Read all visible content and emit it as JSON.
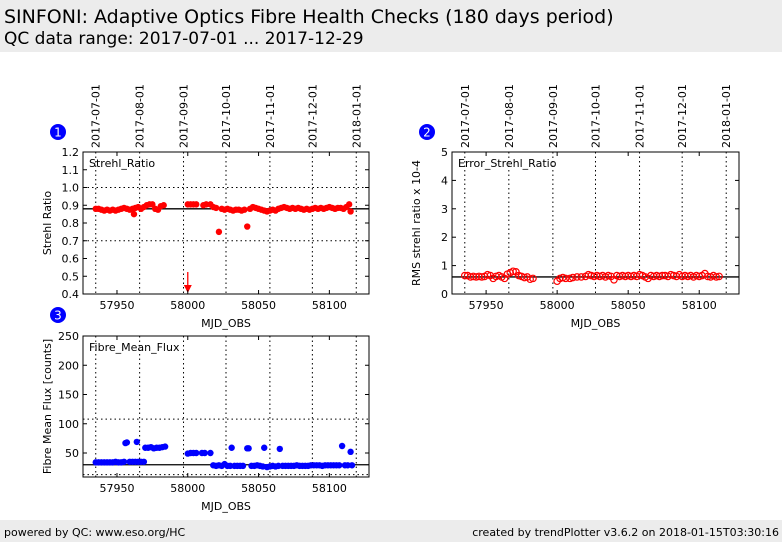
{
  "header": {
    "title": "SINFONI: Adaptive Optics Fibre Health Checks (180 days period)",
    "subtitle": "QC data range: 2017-07-01 ... 2017-12-29"
  },
  "footer": {
    "left": "powered by QC: www.eso.org/HC",
    "right": "created by trendPlotter v3.6.2 on 2018-01-15T03:30:16"
  },
  "colors": {
    "strehl": "#ff0000",
    "flux": "#0000ff",
    "badge": "#0000ff"
  },
  "chart_data": [
    {
      "type": "scatter",
      "badge": "1",
      "label": "Strehl_Ratio",
      "xlabel": "MJD_OBS",
      "ylabel": "Strehl Ratio",
      "xlim": [
        57926,
        58128
      ],
      "ylim": [
        0.4,
        1.2
      ],
      "yticks": [
        "0.4",
        "0.5",
        "0.6",
        "0.7",
        "0.8",
        "0.9",
        "1.0",
        "1.1",
        "1.2"
      ],
      "xticks": [
        "57950",
        "58000",
        "58050",
        "58100"
      ],
      "date_ticks": [
        "2017-07-01",
        "2017-08-01",
        "2017-09-01",
        "2017-10-01",
        "2017-11-01",
        "2017-12-01",
        "2018-01-01"
      ],
      "date_mjd": [
        57935,
        57966,
        57997,
        58027,
        58058,
        58088,
        58119
      ],
      "reference": 0.88,
      "thresholds": [
        1.0,
        0.7
      ],
      "marker": "filled",
      "off_scale_low_mjd": [
        58000
      ],
      "points": [
        [
          57935,
          0.88
        ],
        [
          57937,
          0.88
        ],
        [
          57939,
          0.875
        ],
        [
          57941,
          0.87
        ],
        [
          57943,
          0.875
        ],
        [
          57945,
          0.87
        ],
        [
          57947,
          0.875
        ],
        [
          57949,
          0.87
        ],
        [
          57951,
          0.875
        ],
        [
          57953,
          0.88
        ],
        [
          57955,
          0.885
        ],
        [
          57957,
          0.88
        ],
        [
          57959,
          0.875
        ],
        [
          57961,
          0.88
        ],
        [
          57962,
          0.85
        ],
        [
          57963,
          0.885
        ],
        [
          57965,
          0.89
        ],
        [
          57967,
          0.88
        ],
        [
          57969,
          0.89
        ],
        [
          57971,
          0.9
        ],
        [
          57973,
          0.905
        ],
        [
          57975,
          0.905
        ],
        [
          57977,
          0.88
        ],
        [
          57979,
          0.875
        ],
        [
          57981,
          0.895
        ],
        [
          57983,
          0.9
        ],
        [
          58000,
          0.905
        ],
        [
          58002,
          0.905
        ],
        [
          58004,
          0.905
        ],
        [
          58006,
          0.905
        ],
        [
          58011,
          0.9
        ],
        [
          58013,
          0.905
        ],
        [
          58016,
          0.905
        ],
        [
          58018,
          0.89
        ],
        [
          58020,
          0.885
        ],
        [
          58022,
          0.75
        ],
        [
          58024,
          0.88
        ],
        [
          58026,
          0.875
        ],
        [
          58028,
          0.88
        ],
        [
          58030,
          0.875
        ],
        [
          58032,
          0.87
        ],
        [
          58034,
          0.875
        ],
        [
          58036,
          0.875
        ],
        [
          58038,
          0.87
        ],
        [
          58040,
          0.875
        ],
        [
          58042,
          0.78
        ],
        [
          58044,
          0.88
        ],
        [
          58046,
          0.89
        ],
        [
          58048,
          0.885
        ],
        [
          58050,
          0.88
        ],
        [
          58052,
          0.875
        ],
        [
          58054,
          0.87
        ],
        [
          58056,
          0.865
        ],
        [
          58058,
          0.87
        ],
        [
          58060,
          0.875
        ],
        [
          58062,
          0.87
        ],
        [
          58064,
          0.88
        ],
        [
          58066,
          0.885
        ],
        [
          58068,
          0.89
        ],
        [
          58070,
          0.885
        ],
        [
          58072,
          0.88
        ],
        [
          58074,
          0.885
        ],
        [
          58076,
          0.88
        ],
        [
          58078,
          0.885
        ],
        [
          58080,
          0.88
        ],
        [
          58082,
          0.875
        ],
        [
          58084,
          0.88
        ],
        [
          58086,
          0.875
        ],
        [
          58088,
          0.88
        ],
        [
          58090,
          0.885
        ],
        [
          58092,
          0.88
        ],
        [
          58094,
          0.885
        ],
        [
          58096,
          0.88
        ],
        [
          58098,
          0.885
        ],
        [
          58100,
          0.89
        ],
        [
          58102,
          0.885
        ],
        [
          58104,
          0.88
        ],
        [
          58106,
          0.885
        ],
        [
          58108,
          0.885
        ],
        [
          58110,
          0.88
        ],
        [
          58112,
          0.89
        ],
        [
          58114,
          0.905
        ],
        [
          58115,
          0.865
        ]
      ]
    },
    {
      "type": "scatter",
      "badge": "2",
      "label": "Error_Strehl_Ratio",
      "xlabel": "MJD_OBS",
      "ylabel": "RMS strehl ratio x 10-4",
      "xlim": [
        57926,
        58128
      ],
      "ylim": [
        0,
        5
      ],
      "yticks": [
        "0",
        "1",
        "2",
        "3",
        "4",
        "5"
      ],
      "xticks": [
        "57950",
        "58000",
        "58050",
        "58100"
      ],
      "date_ticks": [
        "2017-07-01",
        "2017-08-01",
        "2017-09-01",
        "2017-10-01",
        "2017-11-01",
        "2017-12-01",
        "2018-01-01"
      ],
      "date_mjd": [
        57935,
        57966,
        57997,
        58027,
        58058,
        58088,
        58119
      ],
      "reference": 0.6,
      "thresholds": [],
      "marker": "open",
      "points": [
        [
          57935,
          0.65
        ],
        [
          57937,
          0.65
        ],
        [
          57939,
          0.6
        ],
        [
          57941,
          0.62
        ],
        [
          57943,
          0.6
        ],
        [
          57945,
          0.62
        ],
        [
          57947,
          0.6
        ],
        [
          57949,
          0.62
        ],
        [
          57951,
          0.68
        ],
        [
          57953,
          0.65
        ],
        [
          57955,
          0.55
        ],
        [
          57957,
          0.62
        ],
        [
          57959,
          0.65
        ],
        [
          57961,
          0.6
        ],
        [
          57963,
          0.55
        ],
        [
          57965,
          0.7
        ],
        [
          57967,
          0.75
        ],
        [
          57969,
          0.8
        ],
        [
          57971,
          0.78
        ],
        [
          57973,
          0.65
        ],
        [
          57975,
          0.62
        ],
        [
          57977,
          0.58
        ],
        [
          57979,
          0.6
        ],
        [
          57981,
          0.52
        ],
        [
          57983,
          0.55
        ],
        [
          58000,
          0.45
        ],
        [
          58002,
          0.55
        ],
        [
          58004,
          0.58
        ],
        [
          58006,
          0.55
        ],
        [
          58009,
          0.55
        ],
        [
          58011,
          0.58
        ],
        [
          58014,
          0.6
        ],
        [
          58017,
          0.6
        ],
        [
          58020,
          0.62
        ],
        [
          58022,
          0.68
        ],
        [
          58024,
          0.65
        ],
        [
          58026,
          0.62
        ],
        [
          58028,
          0.65
        ],
        [
          58030,
          0.62
        ],
        [
          58032,
          0.65
        ],
        [
          58034,
          0.6
        ],
        [
          58036,
          0.65
        ],
        [
          58038,
          0.62
        ],
        [
          58040,
          0.5
        ],
        [
          58042,
          0.65
        ],
        [
          58044,
          0.62
        ],
        [
          58046,
          0.65
        ],
        [
          58048,
          0.62
        ],
        [
          58050,
          0.65
        ],
        [
          58052,
          0.62
        ],
        [
          58054,
          0.65
        ],
        [
          58056,
          0.62
        ],
        [
          58058,
          0.68
        ],
        [
          58060,
          0.65
        ],
        [
          58062,
          0.6
        ],
        [
          58064,
          0.55
        ],
        [
          58066,
          0.65
        ],
        [
          58068,
          0.62
        ],
        [
          58070,
          0.65
        ],
        [
          58072,
          0.62
        ],
        [
          58074,
          0.65
        ],
        [
          58076,
          0.65
        ],
        [
          58078,
          0.62
        ],
        [
          58080,
          0.68
        ],
        [
          58082,
          0.65
        ],
        [
          58084,
          0.62
        ],
        [
          58086,
          0.68
        ],
        [
          58088,
          0.62
        ],
        [
          58090,
          0.65
        ],
        [
          58092,
          0.62
        ],
        [
          58094,
          0.65
        ],
        [
          58096,
          0.6
        ],
        [
          58098,
          0.65
        ],
        [
          58100,
          0.62
        ],
        [
          58102,
          0.65
        ],
        [
          58104,
          0.72
        ],
        [
          58106,
          0.62
        ],
        [
          58108,
          0.6
        ],
        [
          58110,
          0.65
        ],
        [
          58112,
          0.6
        ],
        [
          58114,
          0.62
        ]
      ]
    },
    {
      "type": "scatter",
      "badge": "3",
      "label": "Fibre_Mean_Flux",
      "xlabel": "MJD_OBS",
      "ylabel": "Fibre Mean Flux [counts]",
      "xlim": [
        57926,
        58128
      ],
      "ylim": [
        9,
        250
      ],
      "yticks": [
        "50",
        "100",
        "150",
        "200",
        "250"
      ],
      "xticks": [
        "57950",
        "58000",
        "58050",
        "58100"
      ],
      "date_mjd": [
        57935,
        57966,
        57997,
        58027,
        58058,
        58088,
        58119
      ],
      "reference": 30,
      "thresholds": [
        108,
        13
      ],
      "marker": "filled",
      "points": [
        [
          57935,
          34
        ],
        [
          57937,
          34
        ],
        [
          57939,
          34
        ],
        [
          57941,
          34
        ],
        [
          57943,
          34
        ],
        [
          57945,
          34
        ],
        [
          57947,
          34
        ],
        [
          57949,
          35
        ],
        [
          57951,
          34
        ],
        [
          57953,
          34
        ],
        [
          57955,
          35
        ],
        [
          57956,
          67
        ],
        [
          57957,
          68
        ],
        [
          57959,
          35
        ],
        [
          57961,
          35
        ],
        [
          57963,
          35
        ],
        [
          57964,
          69
        ],
        [
          57965,
          35
        ],
        [
          57967,
          35
        ],
        [
          57969,
          35
        ],
        [
          57970,
          59
        ],
        [
          57972,
          59
        ],
        [
          57974,
          60
        ],
        [
          57976,
          58
        ],
        [
          57978,
          59
        ],
        [
          57980,
          59
        ],
        [
          57982,
          60
        ],
        [
          57984,
          61
        ],
        [
          58000,
          49
        ],
        [
          58002,
          50
        ],
        [
          58004,
          50
        ],
        [
          58006,
          50
        ],
        [
          58010,
          50
        ],
        [
          58012,
          50
        ],
        [
          58016,
          50
        ],
        [
          58018,
          29
        ],
        [
          58020,
          28
        ],
        [
          58022,
          29
        ],
        [
          58024,
          28
        ],
        [
          58026,
          31
        ],
        [
          58028,
          28
        ],
        [
          58030,
          28
        ],
        [
          58031,
          59
        ],
        [
          58033,
          28
        ],
        [
          58035,
          28
        ],
        [
          58037,
          28
        ],
        [
          58039,
          28
        ],
        [
          58042,
          58
        ],
        [
          58043,
          58
        ],
        [
          58045,
          28
        ],
        [
          58047,
          28
        ],
        [
          58049,
          29
        ],
        [
          58051,
          28
        ],
        [
          58053,
          27
        ],
        [
          58054,
          59
        ],
        [
          58056,
          26
        ],
        [
          58058,
          27
        ],
        [
          58060,
          28
        ],
        [
          58062,
          27
        ],
        [
          58064,
          28
        ],
        [
          58065,
          57
        ],
        [
          58067,
          28
        ],
        [
          58069,
          28
        ],
        [
          58071,
          28
        ],
        [
          58073,
          28
        ],
        [
          58075,
          28
        ],
        [
          58077,
          29
        ],
        [
          58079,
          28
        ],
        [
          58081,
          28
        ],
        [
          58083,
          28
        ],
        [
          58085,
          28
        ],
        [
          58087,
          29
        ],
        [
          58089,
          29
        ],
        [
          58091,
          29
        ],
        [
          58093,
          29
        ],
        [
          58095,
          28
        ],
        [
          58097,
          29
        ],
        [
          58099,
          29
        ],
        [
          58101,
          29
        ],
        [
          58103,
          29
        ],
        [
          58105,
          29
        ],
        [
          58107,
          29
        ],
        [
          58109,
          62
        ],
        [
          58111,
          29
        ],
        [
          58113,
          29
        ],
        [
          58115,
          52
        ],
        [
          58116,
          29
        ]
      ]
    }
  ]
}
